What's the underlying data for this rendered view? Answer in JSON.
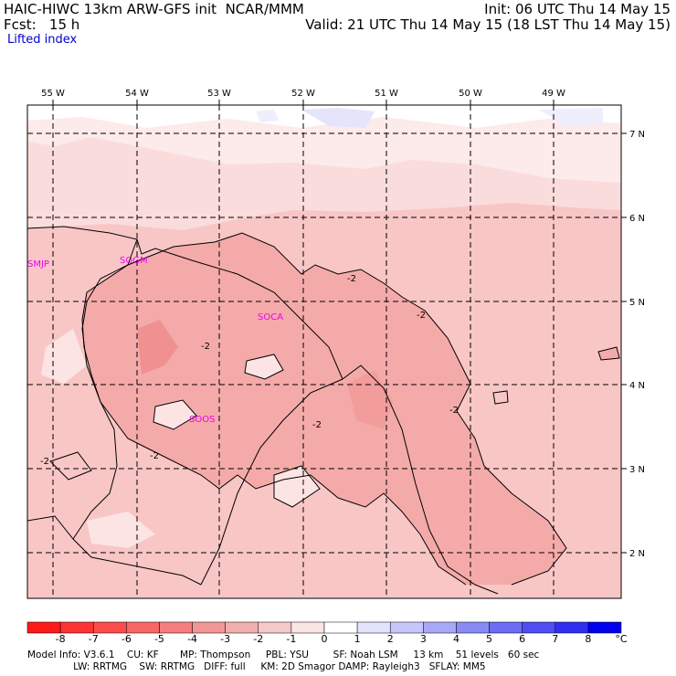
{
  "header": {
    "left_line1": "HAIC-HIWC 13km ARW-GFS init  NCAR/MMM",
    "left_line2": "Fcst:   15 h",
    "right_line1": "Init: 06 UTC Thu 14 May 15",
    "right_line2": "Valid: 21 UTC Thu 14 May 15 (18 LST Thu 14 May 15)",
    "field": "Lifted index"
  },
  "map": {
    "lon_labels": [
      "55 W",
      "54 W",
      "53 W",
      "52 W",
      "51 W",
      "50 W",
      "49 W"
    ],
    "lat_labels": [
      "7 N",
      "6 N",
      "5 N",
      "4 N",
      "3 N",
      "2 N"
    ],
    "stations": [
      "SMJP",
      "SOGM",
      "SOCA",
      "SOOS"
    ],
    "contour_labels": [
      "-2",
      "-2",
      "-2",
      "-2",
      "-2",
      "-2",
      "-2"
    ],
    "colors": {
      "bg_light": "#fbdcdc",
      "mid": "#f7b9b9",
      "strong": "#f29a9a",
      "blue_light": "#e4e4fb",
      "white": "#ffffff"
    }
  },
  "colorbar": {
    "labels": [
      "-8",
      "-7",
      "-6",
      "-5",
      "-4",
      "-3",
      "-2",
      "-1",
      "0",
      "1",
      "2",
      "3",
      "4",
      "5",
      "6",
      "7",
      "8"
    ],
    "unit": "°C",
    "colors": [
      "#ff1a1a",
      "#fe3333",
      "#fc4c4c",
      "#fa6565",
      "#f67e7e",
      "#f39696",
      "#f1b0b0",
      "#f4c9c9",
      "#fbe4e4",
      "#ffffff",
      "#e3e3fb",
      "#c6c6fa",
      "#a8a8f8",
      "#8a8af6",
      "#6c6cf5",
      "#4e4ef3",
      "#2f2ff2",
      "#0000ee"
    ]
  },
  "footer": {
    "line1": "Model Info: V3.6.1    CU: KF       MP: Thompson     PBL: YSU        SF: Noah LSM     13 km    51 levels   60 sec",
    "line2": "               LW: RRTMG    SW: RRTMG   DIFF: full     KM: 2D Smagor DAMP: Rayleigh3   SFLAY: MM5"
  }
}
